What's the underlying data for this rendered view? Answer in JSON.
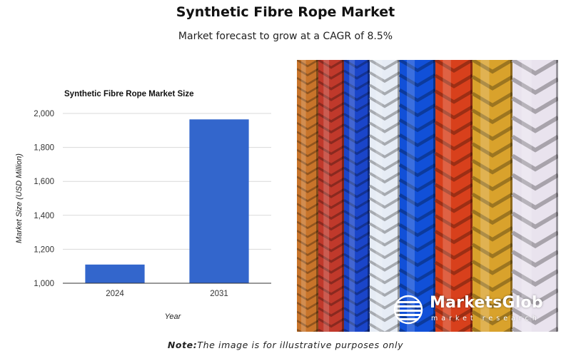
{
  "header": {
    "title": "Synthetic Fibre Rope Market",
    "subtitle": "Market forecast to grow at a CAGR of 8.5%"
  },
  "chart_data": {
    "type": "bar",
    "title": "Synthetic Fibre Rope Market Size",
    "categories": [
      "2024",
      "2031"
    ],
    "values": [
      1110,
      1965
    ],
    "xlabel": "Year",
    "ylabel": "Market Size (USD Million)",
    "ylim": [
      1000,
      2000
    ],
    "yticks": [
      1000,
      1200,
      1400,
      1600,
      1800,
      2000
    ],
    "ytick_labels": [
      "1,000",
      "1,200",
      "1,400",
      "1,600",
      "1,800",
      "2,000"
    ],
    "grid": true,
    "bar_color": "#3366cc"
  },
  "image": {
    "subject": "rope-photo",
    "rope_colors": [
      "#c8742a",
      "#c0392b",
      "#1a45c9",
      "#e6ecf5",
      "#1150d8",
      "#d8401c",
      "#d9a22c",
      "#e9e3ee"
    ]
  },
  "logo": {
    "name": "MarketsGlob",
    "tagline": "market research"
  },
  "footnote": {
    "label": "Note:",
    "text": "The image is for illustrative purposes only"
  }
}
